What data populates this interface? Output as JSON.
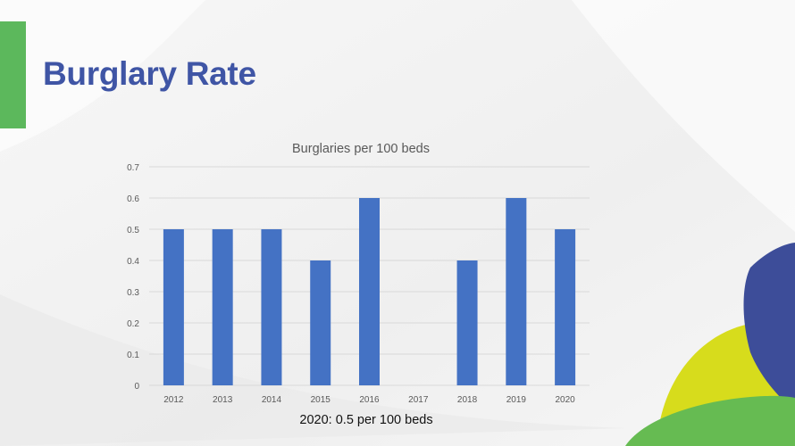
{
  "slide": {
    "title": "Burglary Rate",
    "caption": "2020: 0.5 per 100 beds",
    "colors": {
      "title": "#3f55a5",
      "accent_bar": "#5cb85c",
      "bar": "#4472c4",
      "gridline": "#d9d9d9",
      "deco_green": "#66bb52",
      "deco_yellow": "#d7dc1c",
      "deco_navy": "#3d4d99"
    }
  },
  "chart_data": {
    "type": "bar",
    "title": "Burglaries per 100 beds",
    "xlabel": "",
    "ylabel": "",
    "categories": [
      "2012",
      "2013",
      "2014",
      "2015",
      "2016",
      "2017",
      "2018",
      "2019",
      "2020"
    ],
    "values": [
      0.5,
      0.5,
      0.5,
      0.4,
      0.6,
      null,
      0.4,
      0.6,
      0.5
    ],
    "ylim": [
      0,
      0.7
    ],
    "yticks": [
      "0",
      "0.1",
      "0.2",
      "0.3",
      "0.4",
      "0.5",
      "0.6",
      "0.7"
    ],
    "grid": true,
    "legend": "none"
  }
}
